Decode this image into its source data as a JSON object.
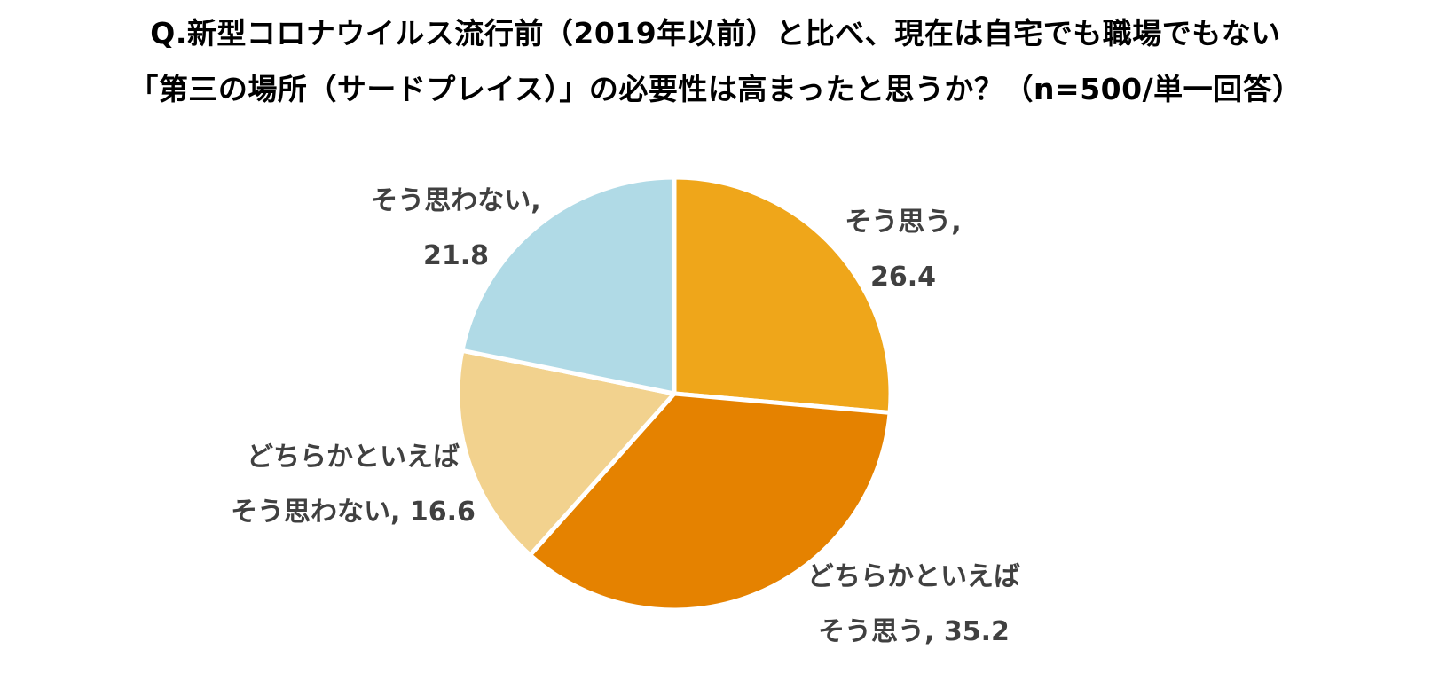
{
  "title": {
    "line1": "Q.新型コロナウイルス流行前（2019年以前）と比べ、現在は自宅でも職場でもない",
    "line2": "「第三の場所（サードプレイス）」の必要性は高まったと思うか？（n=500/単一回答）"
  },
  "chart_data": {
    "type": "pie",
    "title": "Q.新型コロナウイルス流行前（2019年以前）と比べ、現在は自宅でも職場でもない「第三の場所（サードプレイス）」の必要性は高まったと思うか？（n=500/単一回答）",
    "start": "12 o'clock",
    "direction": "clockwise",
    "slices": [
      {
        "key": "agree",
        "label_lines": [
          "そう思う,",
          "26.4"
        ],
        "value": 26.4,
        "color": "#EFA61A"
      },
      {
        "key": "somewhat_agree",
        "label_lines": [
          "どちらかといえば",
          "そう思う, 35.2"
        ],
        "value": 35.2,
        "color": "#E58200"
      },
      {
        "key": "somewhat_disagree",
        "label_lines": [
          "どちらかといえば",
          "そう思わない, 16.6"
        ],
        "value": 16.6,
        "color": "#F2D28E"
      },
      {
        "key": "disagree",
        "label_lines": [
          "そう思わない,",
          "21.8"
        ],
        "value": 21.8,
        "color": "#B0DAE6"
      }
    ]
  }
}
